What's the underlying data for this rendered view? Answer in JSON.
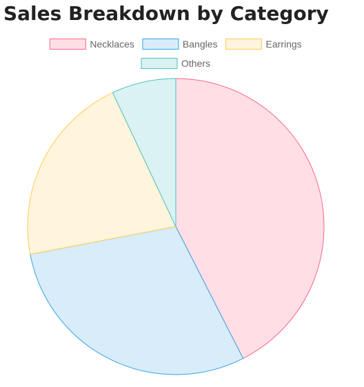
{
  "chart_data": {
    "type": "pie",
    "title": "Sales Breakdown by Category",
    "legend_position": "top",
    "categories": [
      "Necklaces",
      "Bangles",
      "Earrings",
      "Others"
    ],
    "values": [
      42.5,
      29.5,
      21,
      7
    ],
    "colors": {
      "fill": [
        "#ffdfe5",
        "#d8ecf9",
        "#fff4dc",
        "#dbf2f2"
      ],
      "border": [
        "#ff6384",
        "#36a2eb",
        "#ffcd56",
        "#4bc0c0"
      ]
    }
  }
}
